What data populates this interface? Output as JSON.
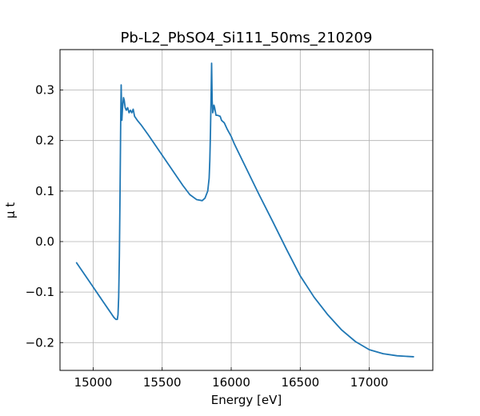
{
  "chart_data": {
    "type": "line",
    "title": "Pb-L2_PbSO4_Si111_50ms_210209",
    "xlabel": "Energy [eV]",
    "ylabel": "μ t",
    "xlim": [
      14760,
      17460
    ],
    "ylim": [
      -0.255,
      0.38
    ],
    "xticks": [
      15000,
      15500,
      16000,
      16500,
      17000
    ],
    "xtick_labels": [
      "15000",
      "15500",
      "16000",
      "16500",
      "17000"
    ],
    "yticks": [
      -0.2,
      -0.1,
      0.0,
      0.1,
      0.2,
      0.3
    ],
    "ytick_labels": [
      "−0.2",
      "−0.1",
      "0.0",
      "0.1",
      "0.2",
      "0.3"
    ],
    "grid": true,
    "line_color": "#1f77b4",
    "series": [
      {
        "x": [
          14880,
          14950,
          15000,
          15050,
          15100,
          15130,
          15150,
          15165,
          15175,
          15180,
          15185,
          15190,
          15195,
          15200,
          15203,
          15208,
          15213,
          15220,
          15225,
          15232,
          15240,
          15250,
          15260,
          15270,
          15280,
          15290,
          15300,
          15320,
          15350,
          15400,
          15450,
          15500,
          15550,
          15600,
          15650,
          15700,
          15750,
          15790,
          15810,
          15830,
          15840,
          15845,
          15850,
          15855,
          15858,
          15862,
          15866,
          15870,
          15875,
          15880,
          15890,
          15900,
          15920,
          15930,
          15950,
          15970,
          15990,
          16000,
          16020,
          16050,
          16100,
          16200,
          16300,
          16400,
          16500,
          16600,
          16700,
          16800,
          16900,
          17000,
          17100,
          17200,
          17320
        ],
        "y": [
          -0.042,
          -0.07,
          -0.09,
          -0.11,
          -0.13,
          -0.142,
          -0.15,
          -0.154,
          -0.154,
          -0.145,
          -0.11,
          -0.03,
          0.1,
          0.25,
          0.31,
          0.24,
          0.265,
          0.285,
          0.28,
          0.265,
          0.26,
          0.265,
          0.255,
          0.26,
          0.255,
          0.262,
          0.248,
          0.24,
          0.23,
          0.211,
          0.191,
          0.171,
          0.151,
          0.131,
          0.111,
          0.093,
          0.083,
          0.081,
          0.086,
          0.1,
          0.125,
          0.16,
          0.22,
          0.3,
          0.353,
          0.28,
          0.255,
          0.26,
          0.27,
          0.265,
          0.25,
          0.25,
          0.248,
          0.24,
          0.235,
          0.223,
          0.213,
          0.208,
          0.195,
          0.178,
          0.15,
          0.094,
          0.04,
          -0.015,
          -0.068,
          -0.11,
          -0.145,
          -0.175,
          -0.198,
          -0.214,
          -0.222,
          -0.226,
          -0.228
        ]
      }
    ]
  }
}
